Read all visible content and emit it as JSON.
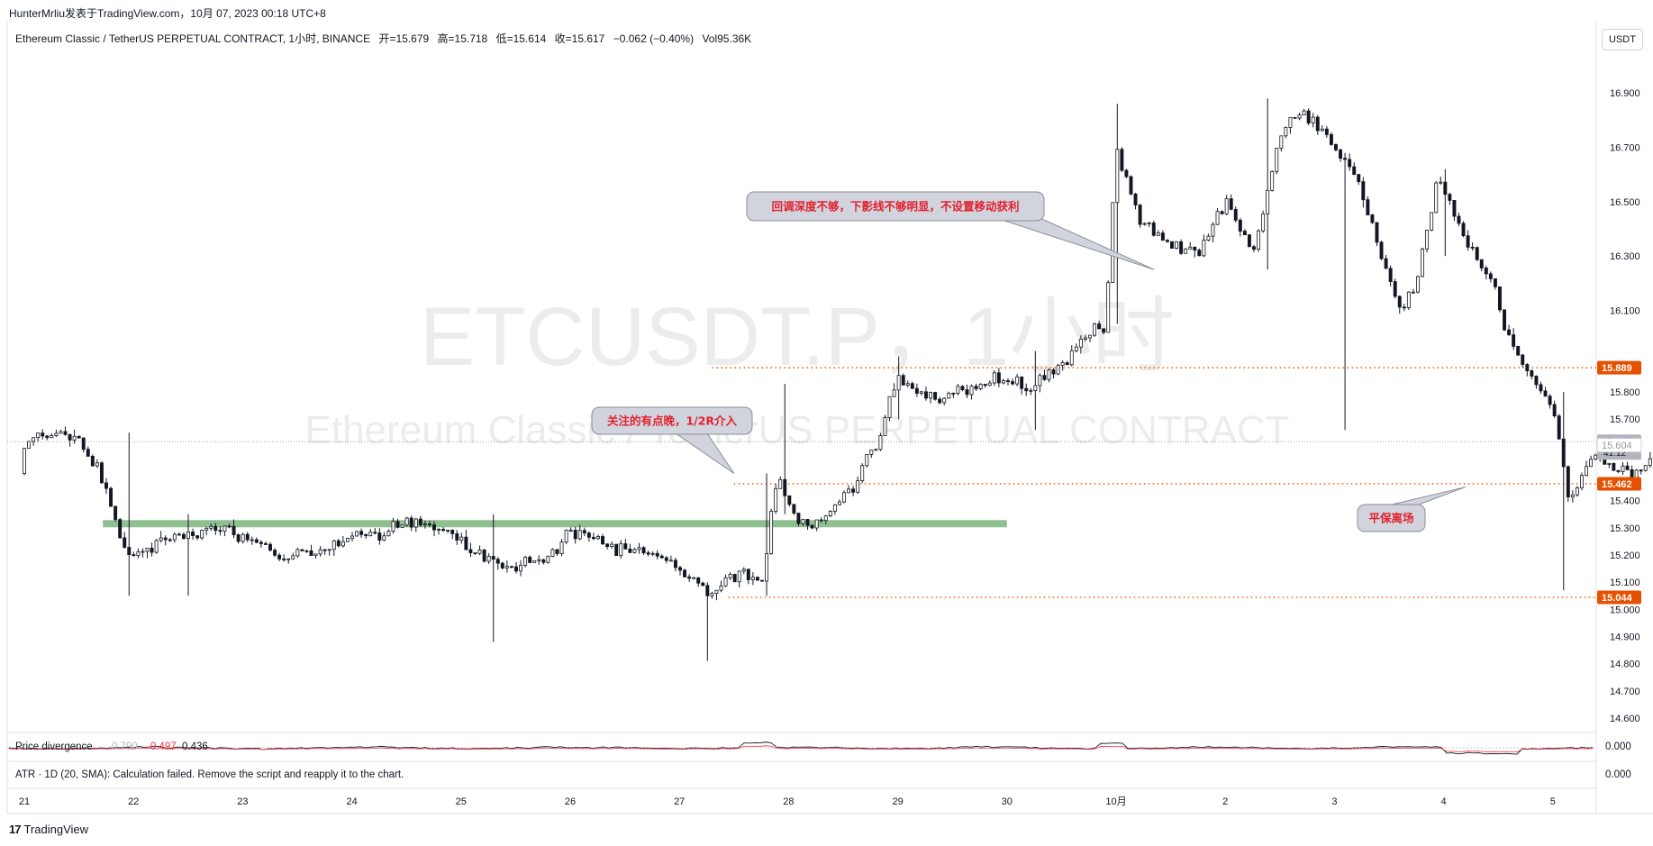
{
  "credit": "HunterMrliu发表于TradingView.com，10月 07, 2023 00:18 UTC+8",
  "legend": {
    "symbol": "Ethereum Classic / TetherUS PERPETUAL CONTRACT, 1小时, BINANCE",
    "open": "开=15.679",
    "high": "高=15.718",
    "low": "低=15.614",
    "close": "收=15.617",
    "change": "−0.062 (−0.40%)",
    "volume": "Vol95.36K"
  },
  "currency_button": "USDT",
  "watermark": {
    "line1": "ETCUSDT.P，1小时",
    "line2": "Ethereum Classic / TetherUS PERPETUAL CONTRACT"
  },
  "indicators": {
    "price_divergence": {
      "label": "Price divergence",
      "v1": "-0.790",
      "v2": "-0.497",
      "v3": "0.436",
      "axis_value": "0.000"
    },
    "atr": {
      "label": "ATR · 1D (20, SMA): Calculation failed. Remove the script and reapply it to the chart.",
      "axis_value": "0.000"
    }
  },
  "footer": {
    "logo_icon": "tradingview-logo-icon",
    "brand": "TradingView"
  },
  "colors": {
    "up": "#ffffff",
    "down": "#131722",
    "wick": "#131722",
    "level_line": "#ff5d00",
    "support_band": "#6aa96a",
    "annotation_text": "#e3202f",
    "badge_orange": "#e65100",
    "badge_grey": "#b2b5be"
  },
  "chart_data": {
    "type": "candlestick",
    "y_axis": {
      "range": [
        14.55,
        17.05
      ],
      "ticks": [
        "16.900",
        "16.700",
        "16.500",
        "16.300",
        "16.100",
        "15.800",
        "15.700",
        "15.400",
        "15.300",
        "15.200",
        "15.100",
        "15.000",
        "14.900",
        "14.800",
        "14.700",
        "14.600"
      ],
      "tick_values": [
        16.9,
        16.7,
        16.5,
        16.3,
        16.1,
        15.8,
        15.7,
        15.4,
        15.3,
        15.2,
        15.1,
        15.0,
        14.9,
        14.8,
        14.7,
        14.6
      ]
    },
    "x_axis": {
      "labels": [
        "21",
        "22",
        "23",
        "24",
        "25",
        "26",
        "27",
        "28",
        "29",
        "30",
        "10月",
        "2",
        "3",
        "4",
        "5"
      ]
    },
    "price_badges": [
      {
        "label": "15.889",
        "value": 15.889,
        "style": "orange"
      },
      {
        "label": "15.617",
        "sub": "41:12",
        "value": 15.617,
        "style": "grey-current"
      },
      {
        "label": "15.604",
        "value": 15.604,
        "style": "light"
      },
      {
        "label": "15.462",
        "value": 15.462,
        "style": "orange"
      },
      {
        "label": "15.044",
        "value": 15.044,
        "style": "orange"
      }
    ],
    "horizontal_levels": [
      {
        "value": 15.889,
        "from_day": 6.3
      },
      {
        "value": 15.462,
        "from_day": 6.5
      },
      {
        "value": 15.044,
        "from_day": 6.45
      }
    ],
    "support_band": {
      "value": 15.315,
      "from_day": 0.72,
      "to_day": 9.0
    },
    "annotations": [
      {
        "text": "回调深度不够，下影线不够明显，不设置移动获利",
        "at_day": 10.35,
        "at_value": 16.25
      },
      {
        "text": "关注的有点晚，1/2R介入",
        "at_day": 6.5,
        "at_value": 15.5
      },
      {
        "text": "平保离场",
        "at_day": 13.2,
        "at_value": 15.45
      }
    ],
    "anchors": [
      {
        "day": 0.0,
        "open": 15.5,
        "close": 15.6
      },
      {
        "day": 0.25,
        "open": 15.6,
        "close": 15.65
      },
      {
        "day": 0.5,
        "open": 15.65,
        "close": 15.62
      },
      {
        "day": 0.75,
        "open": 15.62,
        "close": 15.45
      },
      {
        "day": 0.95,
        "open": 15.4,
        "close": 15.18
      },
      {
        "day": 1.3,
        "open": 15.2,
        "close": 15.26
      },
      {
        "day": 1.8,
        "open": 15.26,
        "close": 15.3
      },
      {
        "day": 2.3,
        "open": 15.3,
        "close": 15.2
      },
      {
        "day": 2.7,
        "open": 15.2,
        "close": 15.2
      },
      {
        "day": 3.0,
        "open": 15.2,
        "close": 15.27
      },
      {
        "day": 3.3,
        "open": 15.27,
        "close": 15.28
      },
      {
        "day": 3.6,
        "open": 15.28,
        "close": 15.33
      },
      {
        "day": 4.0,
        "open": 15.33,
        "close": 15.25
      },
      {
        "day": 4.2,
        "open": 15.25,
        "close": 15.2
      },
      {
        "day": 4.5,
        "open": 15.2,
        "close": 15.15
      },
      {
        "day": 4.9,
        "open": 15.15,
        "close": 15.22
      },
      {
        "day": 5.0,
        "open": 15.22,
        "close": 15.3
      },
      {
        "day": 5.4,
        "open": 15.3,
        "close": 15.22
      },
      {
        "day": 5.8,
        "open": 15.22,
        "close": 15.2
      },
      {
        "day": 6.1,
        "open": 15.2,
        "close": 15.12
      },
      {
        "day": 6.3,
        "open": 15.12,
        "close": 15.05
      },
      {
        "day": 6.55,
        "open": 15.05,
        "close": 15.15
      },
      {
        "day": 6.75,
        "open": 15.15,
        "close": 15.1
      },
      {
        "day": 6.9,
        "open": 15.1,
        "close": 15.5
      },
      {
        "day": 7.1,
        "open": 15.5,
        "close": 15.3
      },
      {
        "day": 7.3,
        "open": 15.3,
        "close": 15.32
      },
      {
        "day": 7.6,
        "open": 15.32,
        "close": 15.45
      },
      {
        "day": 7.8,
        "open": 15.45,
        "close": 15.6
      },
      {
        "day": 8.0,
        "open": 15.6,
        "close": 15.85
      },
      {
        "day": 8.3,
        "open": 15.85,
        "close": 15.78
      },
      {
        "day": 8.6,
        "open": 15.78,
        "close": 15.8
      },
      {
        "day": 8.9,
        "open": 15.8,
        "close": 15.85
      },
      {
        "day": 9.2,
        "open": 15.85,
        "close": 15.82
      },
      {
        "day": 9.5,
        "open": 15.82,
        "close": 15.9
      },
      {
        "day": 9.7,
        "open": 15.9,
        "close": 16.0
      },
      {
        "day": 9.9,
        "open": 16.0,
        "close": 16.05
      },
      {
        "day": 10.0,
        "open": 16.05,
        "close": 16.7
      },
      {
        "day": 10.2,
        "open": 16.7,
        "close": 16.45
      },
      {
        "day": 10.5,
        "open": 16.45,
        "close": 16.35
      },
      {
        "day": 10.75,
        "open": 16.35,
        "close": 16.3
      },
      {
        "day": 11.0,
        "open": 16.3,
        "close": 16.5
      },
      {
        "day": 11.25,
        "open": 16.5,
        "close": 16.3
      },
      {
        "day": 11.5,
        "open": 16.3,
        "close": 16.75
      },
      {
        "day": 11.7,
        "open": 16.75,
        "close": 16.85
      },
      {
        "day": 12.0,
        "open": 16.85,
        "close": 16.7
      },
      {
        "day": 12.2,
        "open": 16.7,
        "close": 16.6
      },
      {
        "day": 12.4,
        "open": 16.6,
        "close": 16.35
      },
      {
        "day": 12.6,
        "open": 16.35,
        "close": 16.1
      },
      {
        "day": 12.75,
        "open": 16.1,
        "close": 16.2
      },
      {
        "day": 12.95,
        "open": 16.2,
        "close": 16.6
      },
      {
        "day": 13.2,
        "open": 16.6,
        "close": 16.35
      },
      {
        "day": 13.4,
        "open": 16.35,
        "close": 16.25
      },
      {
        "day": 13.6,
        "open": 16.25,
        "close": 16.0
      },
      {
        "day": 13.8,
        "open": 16.0,
        "close": 15.85
      },
      {
        "day": 14.0,
        "open": 15.85,
        "close": 15.75
      },
      {
        "day": 14.15,
        "open": 15.75,
        "close": 15.4
      },
      {
        "day": 14.35,
        "open": 15.4,
        "close": 15.55
      },
      {
        "day": 14.6,
        "open": 15.55,
        "close": 15.52
      },
      {
        "day": 14.8,
        "open": 15.52,
        "close": 15.5
      },
      {
        "day": 15.0,
        "open": 15.5,
        "close": 15.6
      },
      {
        "day": 15.2,
        "open": 15.6,
        "close": 15.68
      },
      {
        "day": 15.35,
        "open": 15.68,
        "close": 15.617
      }
    ],
    "spikes": [
      {
        "day": 0.95,
        "high": 15.65,
        "low": 15.05
      },
      {
        "day": 1.5,
        "high": 15.35,
        "low": 15.05
      },
      {
        "day": 4.3,
        "high": 15.35,
        "low": 14.88
      },
      {
        "day": 6.25,
        "high": 15.1,
        "low": 14.81
      },
      {
        "day": 6.8,
        "high": 15.5,
        "low": 15.05
      },
      {
        "day": 6.95,
        "high": 15.83,
        "low": 15.35
      },
      {
        "day": 8.0,
        "high": 15.93,
        "low": 15.7
      },
      {
        "day": 9.25,
        "high": 15.95,
        "low": 15.66
      },
      {
        "day": 10.0,
        "high": 16.86,
        "low": 16.05
      },
      {
        "day": 11.4,
        "high": 16.88,
        "low": 16.25
      },
      {
        "day": 12.1,
        "high": 16.5,
        "low": 15.66
      },
      {
        "day": 13.0,
        "high": 16.62,
        "low": 16.3
      },
      {
        "day": 14.1,
        "high": 15.8,
        "low": 15.07
      },
      {
        "day": 15.3,
        "high": 15.78,
        "low": 15.5
      }
    ]
  }
}
